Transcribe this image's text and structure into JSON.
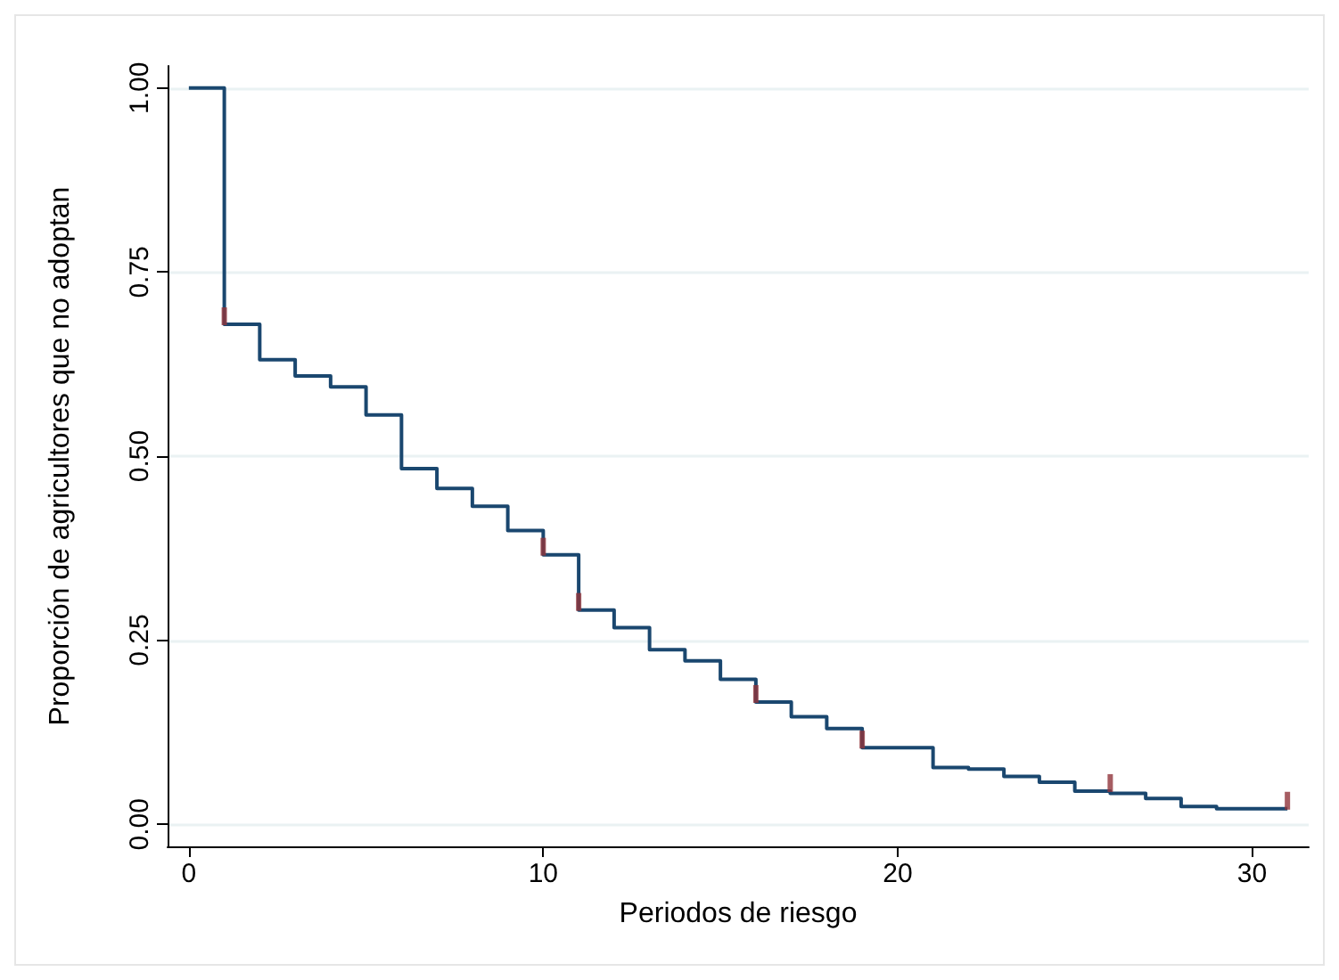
{
  "chart_data": {
    "type": "step",
    "xlabel": "Periodos de riesgo",
    "ylabel": "Proporción de agricultores que no adoptan",
    "xlim": [
      -0.6,
      31.6
    ],
    "xticks": [
      0,
      10,
      20,
      30
    ],
    "ylim": [
      -0.03,
      1.03
    ],
    "yticks": [
      {
        "value": 0,
        "label": "0.00"
      },
      {
        "value": 0.25,
        "label": "0.25"
      },
      {
        "value": 0.5,
        "label": "0.50"
      },
      {
        "value": 0.75,
        "label": "0.75"
      },
      {
        "value": 1,
        "label": "1.00"
      }
    ],
    "grid": "y",
    "series": [
      {
        "color": "#1a476f",
        "x": [
          0,
          1,
          2,
          3,
          4,
          5,
          6,
          7,
          8,
          9,
          10,
          11,
          12,
          13,
          14,
          15,
          16,
          17,
          18,
          19,
          21,
          22,
          23,
          24,
          25,
          26,
          27,
          28,
          29,
          31
        ],
        "values": [
          1,
          0.679,
          0.631,
          0.609,
          0.594,
          0.556,
          0.483,
          0.456,
          0.432,
          0.399,
          0.366,
          0.291,
          0.267,
          0.237,
          0.222,
          0.197,
          0.166,
          0.146,
          0.13,
          0.104,
          0.077,
          0.075,
          0.065,
          0.057,
          0.045,
          0.042,
          0.035,
          0.024,
          0.021,
          0.021
        ]
      },
      {
        "type": "scatter",
        "color": "#90353b",
        "x": [
          1,
          10,
          11,
          16,
          19,
          26,
          31
        ],
        "values": [
          0.69,
          0.377,
          0.302,
          0.177,
          0.115,
          0.056,
          0.032
        ]
      }
    ]
  }
}
